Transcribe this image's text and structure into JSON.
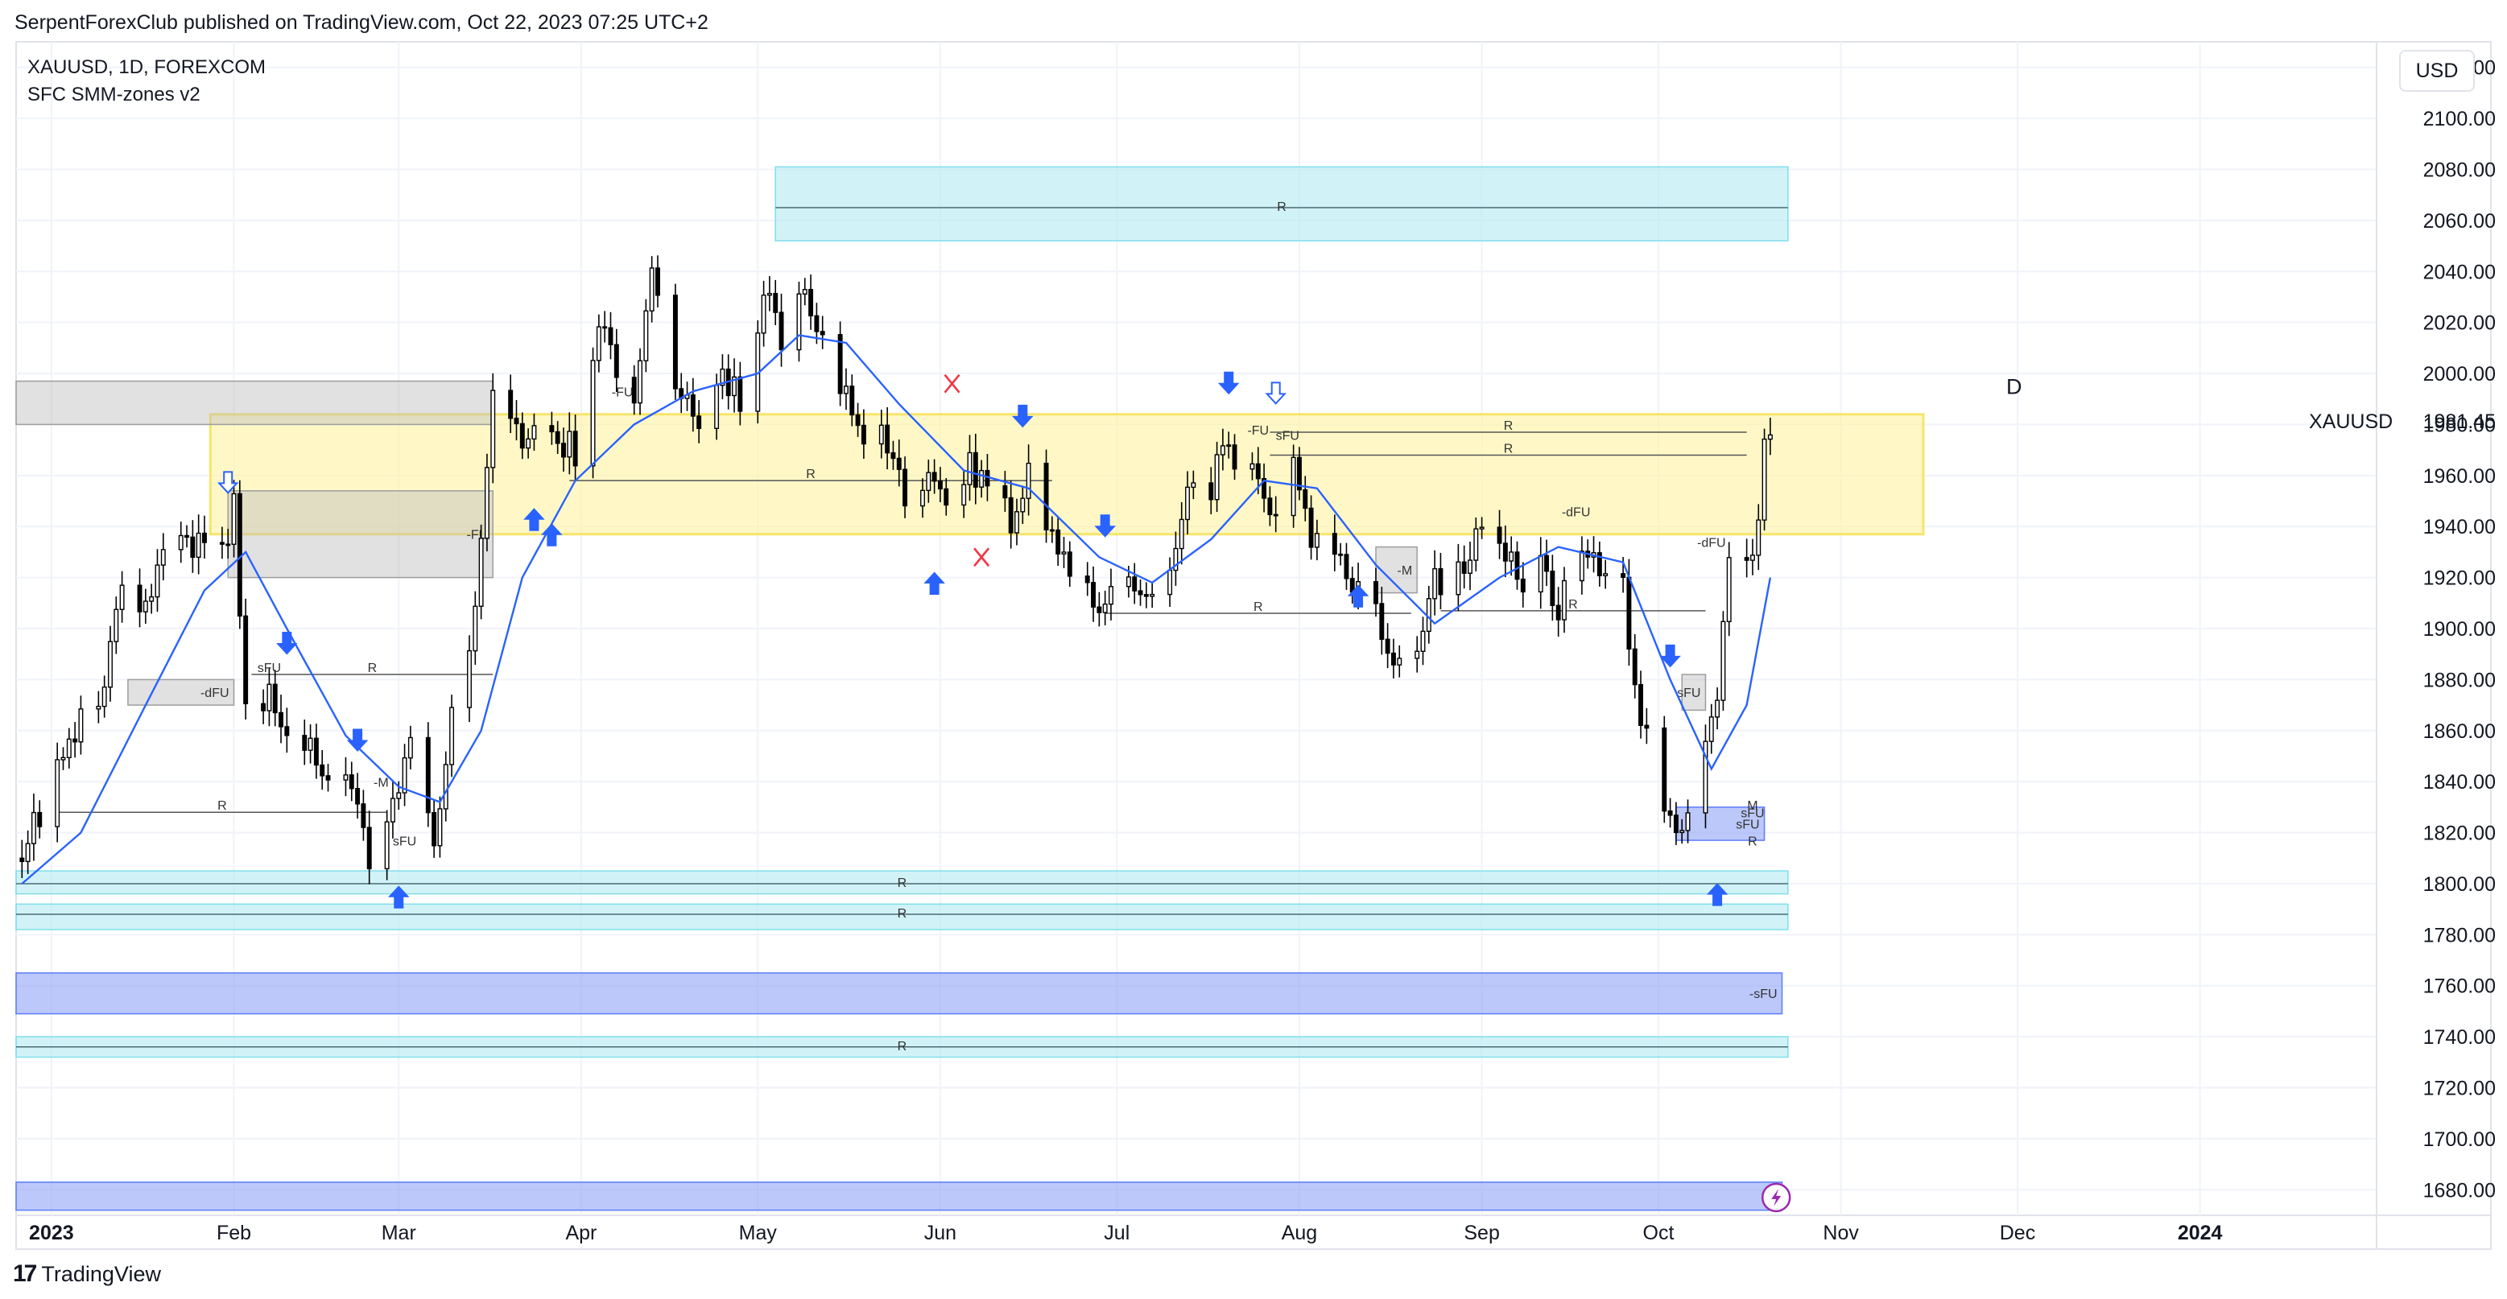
{
  "header": {
    "publish_line": "SerpentForexClub published on TradingView.com, Oct 22, 2023 07:25 UTC+2",
    "symbol_line": "XAUUSD, 1D, FOREXCOM",
    "indicator_line": "SFC SMM-zones v2",
    "currency_button": "USD"
  },
  "footer": {
    "brand_mark": "17",
    "brand_text": "TradingView"
  },
  "colors": {
    "up_candle": "#ffffff",
    "down_candle": "#000000",
    "moving_average": "#2962ff",
    "yellow_zone": "#fff3a0",
    "cyan_zone": "#b2ebf2",
    "blue_zone": "#90a4f5",
    "gray_zone": "#bdbdbd",
    "arrow_blue": "#2962ff",
    "x_red": "#f23645",
    "icon_purple": "#9c27b0"
  },
  "chart_data": {
    "type": "candlestick",
    "symbol": "XAUUSD",
    "timeframe": "1D",
    "ylim": [
      1670,
      2130
    ],
    "y_ticks": [
      1680,
      1700,
      1720,
      1740,
      1760,
      1780,
      1800,
      1820,
      1840,
      1860,
      1880,
      1900,
      1920,
      1940,
      1960,
      1980,
      2000,
      2020,
      2040,
      2060,
      2080,
      2100,
      2120
    ],
    "y_tick_labels": [
      "1680.00",
      "1700.00",
      "1720.00",
      "1740.00",
      "1760.00",
      "1780.00",
      "1800.00",
      "1820.00",
      "1840.00",
      "1860.00",
      "1880.00",
      "1900.00",
      "1920.00",
      "1940.00",
      "1960.00",
      "1980.00",
      "2000.00",
      "2020.00",
      "2040.00",
      "2060.00",
      "2080.00",
      "2100.00",
      "2120.00"
    ],
    "x_range": [
      "2022-12-26",
      "2024-01-31"
    ],
    "x_ticks": [
      {
        "date": "2023-01-01",
        "label": "2023",
        "bold": true
      },
      {
        "date": "2023-02-01",
        "label": "Feb"
      },
      {
        "date": "2023-03-01",
        "label": "Mar"
      },
      {
        "date": "2023-04-01",
        "label": "Apr"
      },
      {
        "date": "2023-05-01",
        "label": "May"
      },
      {
        "date": "2023-06-01",
        "label": "Jun"
      },
      {
        "date": "2023-07-01",
        "label": "Jul"
      },
      {
        "date": "2023-08-01",
        "label": "Aug"
      },
      {
        "date": "2023-09-01",
        "label": "Sep"
      },
      {
        "date": "2023-10-01",
        "label": "Oct"
      },
      {
        "date": "2023-11-01",
        "label": "Nov"
      },
      {
        "date": "2023-12-01",
        "label": "Dec"
      },
      {
        "date": "2024-01-01",
        "label": "2024",
        "bold": true
      }
    ],
    "last_price": 1981.45,
    "last_price_label": "1981.45",
    "symbol_label": "XAUUSD",
    "timeframe_marker": "D",
    "close_series": [
      [
        "2022-12-27",
        1815
      ],
      [
        "2022-12-30",
        1824
      ],
      [
        "2023-01-04",
        1856
      ],
      [
        "2023-01-06",
        1866
      ],
      [
        "2023-01-10",
        1876
      ],
      [
        "2023-01-13",
        1920
      ],
      [
        "2023-01-17",
        1909
      ],
      [
        "2023-01-20",
        1926
      ],
      [
        "2023-01-24",
        1936
      ],
      [
        "2023-01-27",
        1928
      ],
      [
        "2023-01-31",
        1929
      ],
      [
        "2023-02-01",
        1950
      ],
      [
        "2023-02-03",
        1865
      ],
      [
        "2023-02-07",
        1873
      ],
      [
        "2023-02-10",
        1865
      ],
      [
        "2023-02-14",
        1854
      ],
      [
        "2023-02-17",
        1842
      ],
      [
        "2023-02-21",
        1835
      ],
      [
        "2023-02-24",
        1811
      ],
      [
        "2023-02-28",
        1827
      ],
      [
        "2023-03-03",
        1856
      ],
      [
        "2023-03-07",
        1813
      ],
      [
        "2023-03-10",
        1867
      ],
      [
        "2023-03-14",
        1905
      ],
      [
        "2023-03-17",
        1988
      ],
      [
        "2023-03-20",
        1978
      ],
      [
        "2023-03-22",
        1970
      ],
      [
        "2023-03-24",
        1978
      ],
      [
        "2023-03-28",
        1973
      ],
      [
        "2023-03-31",
        1969
      ],
      [
        "2023-04-04",
        2020
      ],
      [
        "2023-04-06",
        2007
      ],
      [
        "2023-04-10",
        1990
      ],
      [
        "2023-04-13",
        2040
      ],
      [
        "2023-04-17",
        1995
      ],
      [
        "2023-04-19",
        1994
      ],
      [
        "2023-04-21",
        1983
      ],
      [
        "2023-04-25",
        1998
      ],
      [
        "2023-04-28",
        1989
      ],
      [
        "2023-05-03",
        2037
      ],
      [
        "2023-05-05",
        2016
      ],
      [
        "2023-05-09",
        2034
      ],
      [
        "2023-05-12",
        2011
      ],
      [
        "2023-05-16",
        1989
      ],
      [
        "2023-05-19",
        1977
      ],
      [
        "2023-05-23",
        1975
      ],
      [
        "2023-05-26",
        1946
      ],
      [
        "2023-05-30",
        1959
      ],
      [
        "2023-06-02",
        1948
      ],
      [
        "2023-06-06",
        1963
      ],
      [
        "2023-06-09",
        1961
      ],
      [
        "2023-06-13",
        1943
      ],
      [
        "2023-06-16",
        1958
      ],
      [
        "2023-06-20",
        1936
      ],
      [
        "2023-06-23",
        1921
      ],
      [
        "2023-06-27",
        1913
      ],
      [
        "2023-06-29",
        1907
      ],
      [
        "2023-07-03",
        1921
      ],
      [
        "2023-07-06",
        1911
      ],
      [
        "2023-07-10",
        1925
      ],
      [
        "2023-07-13",
        1960
      ],
      [
        "2023-07-17",
        1955
      ],
      [
        "2023-07-19",
        1977
      ],
      [
        "2023-07-21",
        1962
      ],
      [
        "2023-07-25",
        1964
      ],
      [
        "2023-07-27",
        1946
      ],
      [
        "2023-07-31",
        1965
      ],
      [
        "2023-08-03",
        1934
      ],
      [
        "2023-08-07",
        1936
      ],
      [
        "2023-08-10",
        1913
      ],
      [
        "2023-08-14",
        1907
      ],
      [
        "2023-08-17",
        1889
      ],
      [
        "2023-08-21",
        1895
      ],
      [
        "2023-08-24",
        1917
      ],
      [
        "2023-08-28",
        1920
      ],
      [
        "2023-08-31",
        1940
      ],
      [
        "2023-09-04",
        1939
      ],
      [
        "2023-09-07",
        1919
      ],
      [
        "2023-09-11",
        1922
      ],
      [
        "2023-09-14",
        1910
      ],
      [
        "2023-09-18",
        1934
      ],
      [
        "2023-09-21",
        1920
      ],
      [
        "2023-09-25",
        1915
      ],
      [
        "2023-09-28",
        1865
      ],
      [
        "2023-10-02",
        1827
      ],
      [
        "2023-10-05",
        1820
      ],
      [
        "2023-10-09",
        1861
      ],
      [
        "2023-10-11",
        1874
      ],
      [
        "2023-10-13",
        1932
      ],
      [
        "2023-10-16",
        1920
      ],
      [
        "2023-10-18",
        1947
      ],
      [
        "2023-10-19",
        1974
      ],
      [
        "2023-10-20",
        1981.45
      ]
    ],
    "moving_average": [
      [
        "2022-12-27",
        1800
      ],
      [
        "2023-01-06",
        1820
      ],
      [
        "2023-01-17",
        1870
      ],
      [
        "2023-01-27",
        1915
      ],
      [
        "2023-02-03",
        1930
      ],
      [
        "2023-02-10",
        1900
      ],
      [
        "2023-02-20",
        1858
      ],
      [
        "2023-03-01",
        1838
      ],
      [
        "2023-03-08",
        1832
      ],
      [
        "2023-03-15",
        1860
      ],
      [
        "2023-03-22",
        1920
      ],
      [
        "2023-03-31",
        1958
      ],
      [
        "2023-04-10",
        1980
      ],
      [
        "2023-04-20",
        1993
      ],
      [
        "2023-05-01",
        2000
      ],
      [
        "2023-05-08",
        2015
      ],
      [
        "2023-05-16",
        2012
      ],
      [
        "2023-05-25",
        1988
      ],
      [
        "2023-06-05",
        1962
      ],
      [
        "2023-06-16",
        1955
      ],
      [
        "2023-06-28",
        1928
      ],
      [
        "2023-07-07",
        1918
      ],
      [
        "2023-07-17",
        1935
      ],
      [
        "2023-07-26",
        1958
      ],
      [
        "2023-08-04",
        1955
      ],
      [
        "2023-08-14",
        1925
      ],
      [
        "2023-08-24",
        1902
      ],
      [
        "2023-09-04",
        1920
      ],
      [
        "2023-09-14",
        1932
      ],
      [
        "2023-09-25",
        1926
      ],
      [
        "2023-10-03",
        1880
      ],
      [
        "2023-10-10",
        1845
      ],
      [
        "2023-10-16",
        1870
      ],
      [
        "2023-10-20",
        1920
      ]
    ],
    "zones": [
      {
        "kind": "cyan",
        "from": "2023-05-04",
        "to": "2023-10-23",
        "low": 2052,
        "high": 2081,
        "mid": 2065,
        "label": "R"
      },
      {
        "kind": "yellow",
        "from": "2023-01-28",
        "to": "2023-11-15",
        "low": 1937,
        "high": 1984
      },
      {
        "kind": "gray",
        "from": "2022-12-26",
        "to": "2023-03-17",
        "low": 1980,
        "high": 1997
      },
      {
        "kind": "gray",
        "from": "2023-01-31",
        "to": "2023-03-17",
        "low": 1920,
        "high": 1954,
        "label": "-FU"
      },
      {
        "kind": "gray",
        "from": "2023-01-14",
        "to": "2023-02-01",
        "low": 1870,
        "high": 1880,
        "label": "-dFU"
      },
      {
        "kind": "gray",
        "from": "2023-08-14",
        "to": "2023-08-21",
        "low": 1914,
        "high": 1932,
        "label": "-M"
      },
      {
        "kind": "gray",
        "from": "2023-10-05",
        "to": "2023-10-09",
        "low": 1868,
        "high": 1882,
        "label": "sFU"
      },
      {
        "kind": "cyan",
        "from": "2022-12-26",
        "to": "2023-10-23",
        "low": 1796,
        "high": 1805,
        "mid": 1800,
        "label": "R"
      },
      {
        "kind": "cyan",
        "from": "2022-12-26",
        "to": "2023-10-23",
        "low": 1782,
        "high": 1792,
        "mid": 1788,
        "label": "R"
      },
      {
        "kind": "blue",
        "from": "2022-12-26",
        "to": "2023-10-22",
        "low": 1749,
        "high": 1765,
        "label": "-sFU"
      },
      {
        "kind": "cyan",
        "from": "2022-12-26",
        "to": "2023-10-23",
        "low": 1732,
        "high": 1740,
        "mid": 1736,
        "label": "R"
      },
      {
        "kind": "blue",
        "from": "2022-12-26",
        "to": "2023-10-22",
        "low": 1672,
        "high": 1683,
        "label": ""
      },
      {
        "kind": "blue",
        "from": "2023-10-04",
        "to": "2023-10-19",
        "low": 1817,
        "high": 1830,
        "label": "sFU"
      }
    ],
    "r_lines": [
      {
        "from": "2023-01-02",
        "to": "2023-02-27",
        "price": 1828,
        "label": "R"
      },
      {
        "from": "2023-02-04",
        "to": "2023-03-17",
        "price": 1882,
        "label": "R"
      },
      {
        "from": "2023-03-30",
        "to": "2023-06-20",
        "price": 1958,
        "label": "R"
      },
      {
        "from": "2023-06-29",
        "to": "2023-08-20",
        "price": 1906,
        "label": "R"
      },
      {
        "from": "2023-08-25",
        "to": "2023-10-09",
        "price": 1907,
        "label": "R"
      },
      {
        "from": "2023-07-27",
        "to": "2023-10-16",
        "price": 1977,
        "label": "R"
      },
      {
        "from": "2023-07-27",
        "to": "2023-10-16",
        "price": 1968,
        "label": "R"
      }
    ],
    "arrows": [
      {
        "date": "2023-01-31",
        "price": 1957,
        "dir": "down",
        "style": "hollow"
      },
      {
        "date": "2023-02-10",
        "price": 1894,
        "dir": "down",
        "style": "filled"
      },
      {
        "date": "2023-02-22",
        "price": 1856,
        "dir": "down",
        "style": "filled"
      },
      {
        "date": "2023-03-01",
        "price": 1795,
        "dir": "up",
        "style": "filled"
      },
      {
        "date": "2023-03-24",
        "price": 1943,
        "dir": "up",
        "style": "filled"
      },
      {
        "date": "2023-03-27",
        "price": 1937,
        "dir": "up",
        "style": "filled"
      },
      {
        "date": "2023-05-31",
        "price": 1918,
        "dir": "up",
        "style": "filled"
      },
      {
        "date": "2023-06-15",
        "price": 1983,
        "dir": "down",
        "style": "filled"
      },
      {
        "date": "2023-06-29",
        "price": 1940,
        "dir": "down",
        "style": "filled"
      },
      {
        "date": "2023-07-20",
        "price": 1996,
        "dir": "down",
        "style": "filled"
      },
      {
        "date": "2023-07-28",
        "price": 1992,
        "dir": "down",
        "style": "hollow"
      },
      {
        "date": "2023-08-11",
        "price": 1913,
        "dir": "up",
        "style": "filled"
      },
      {
        "date": "2023-10-03",
        "price": 1889,
        "dir": "down",
        "style": "filled"
      },
      {
        "date": "2023-10-11",
        "price": 1796,
        "dir": "up",
        "style": "filled"
      }
    ],
    "x_marks": [
      {
        "date": "2023-06-03",
        "price": 1996
      },
      {
        "date": "2023-06-08",
        "price": 1928
      }
    ],
    "zone_labels": [
      {
        "date": "2023-04-08",
        "price": 1991,
        "text": "-FU"
      },
      {
        "date": "2023-07-25",
        "price": 1976,
        "text": "-FU"
      },
      {
        "date": "2023-07-30",
        "price": 1974,
        "text": "sFU"
      },
      {
        "date": "2023-09-17",
        "price": 1944,
        "text": "-dFU"
      },
      {
        "date": "2023-10-10",
        "price": 1932,
        "text": "-dFU"
      },
      {
        "date": "2023-02-07",
        "price": 1883,
        "text": "sFU"
      },
      {
        "date": "2023-02-26",
        "price": 1838,
        "text": "-M"
      },
      {
        "date": "2023-03-02",
        "price": 1815,
        "text": "sFU"
      },
      {
        "date": "2023-10-17",
        "price": 1826,
        "text": "sFU"
      },
      {
        "date": "2023-10-17",
        "price": 1829,
        "text": "M"
      },
      {
        "date": "2023-10-17",
        "price": 1815,
        "text": "R"
      }
    ]
  }
}
